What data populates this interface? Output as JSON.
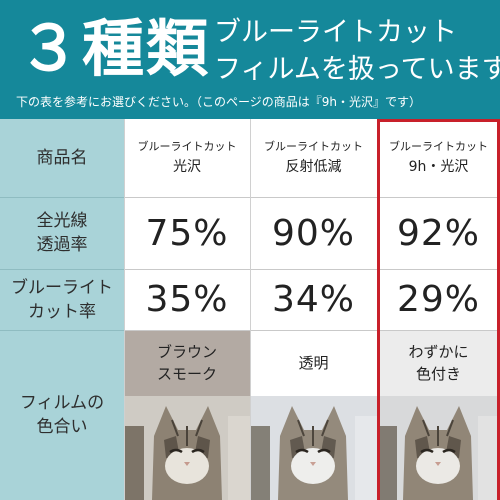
{
  "header": {
    "big_title": "３種類",
    "subtitle_line1": "ブルーライトカット",
    "subtitle_line2": "フィルムを扱っています",
    "note": "下の表を参考にお選びください。（このページの商品は『9h・光沢』です）",
    "background_color": "#15889a"
  },
  "table": {
    "row_headers": [
      {
        "label": "商品名"
      },
      {
        "label": "全光線\n透過率"
      },
      {
        "label": "ブルーライト\nカット率"
      },
      {
        "label": "フィルムの\n色合い"
      }
    ],
    "products": [
      {
        "name_small": "ブルーライトカット",
        "name_main": "光沢",
        "transmittance": "75%",
        "cut_rate": "35%",
        "tint": "ブラウン\nスモーク",
        "tint_color": "#b3aaa3",
        "highlighted": false
      },
      {
        "name_small": "ブルーライトカット",
        "name_main": "反射低減",
        "transmittance": "90%",
        "cut_rate": "34%",
        "tint": "透明",
        "tint_color": "#ffffff",
        "highlighted": false
      },
      {
        "name_small": "ブルーライトカット",
        "name_main": "9h・光沢",
        "transmittance": "92%",
        "cut_rate": "29%",
        "tint": "わずかに\n色付き",
        "tint_color": "#ececec",
        "highlighted": true
      }
    ],
    "header_column_color": "#a9d3d8",
    "highlight_color": "#c8202a"
  }
}
